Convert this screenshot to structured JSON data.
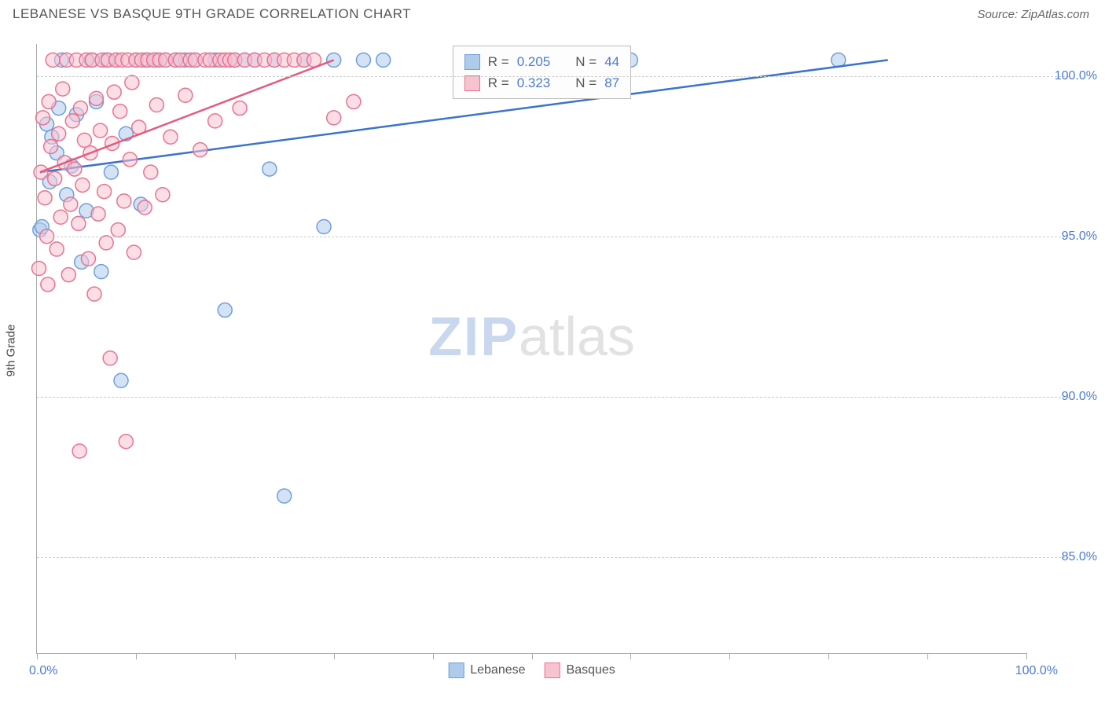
{
  "title": "LEBANESE VS BASQUE 9TH GRADE CORRELATION CHART",
  "source": "Source: ZipAtlas.com",
  "ylabel": "9th Grade",
  "watermark": {
    "part1": "ZIP",
    "part2": "atlas"
  },
  "chart": {
    "type": "scatter",
    "xlim": [
      0,
      100
    ],
    "ylim": [
      82,
      101
    ],
    "xtick_positions": [
      0,
      10,
      20,
      30,
      40,
      50,
      60,
      70,
      80,
      90,
      100
    ],
    "ytick_positions": [
      85,
      90,
      95,
      100
    ],
    "ytick_labels": [
      "85.0%",
      "90.0%",
      "95.0%",
      "100.0%"
    ],
    "x_start_label": "0.0%",
    "x_end_label": "100.0%",
    "background_color": "#ffffff",
    "grid_color": "#cccccc",
    "marker_radius": 9,
    "marker_stroke_width": 1.5,
    "series": [
      {
        "name": "Lebanese",
        "fill": "#aecbec",
        "stroke": "#6f9fd8",
        "fill_opacity": 0.55,
        "points": [
          [
            0.3,
            95.2
          ],
          [
            0.5,
            95.3
          ],
          [
            1.0,
            98.5
          ],
          [
            1.3,
            96.7
          ],
          [
            1.5,
            98.1
          ],
          [
            2.0,
            97.6
          ],
          [
            2.2,
            99.0
          ],
          [
            2.5,
            100.5
          ],
          [
            3.0,
            96.3
          ],
          [
            3.5,
            97.2
          ],
          [
            4.0,
            98.8
          ],
          [
            4.5,
            94.2
          ],
          [
            5.0,
            95.8
          ],
          [
            5.5,
            100.5
          ],
          [
            6.0,
            99.2
          ],
          [
            6.5,
            93.9
          ],
          [
            7.0,
            100.5
          ],
          [
            7.5,
            97.0
          ],
          [
            8.0,
            100.5
          ],
          [
            8.5,
            90.5
          ],
          [
            9.0,
            98.2
          ],
          [
            10.0,
            100.5
          ],
          [
            10.5,
            96.0
          ],
          [
            11.0,
            100.5
          ],
          [
            12.0,
            100.5
          ],
          [
            13.0,
            100.5
          ],
          [
            14.0,
            100.5
          ],
          [
            15.0,
            100.5
          ],
          [
            16.0,
            100.5
          ],
          [
            18.0,
            100.5
          ],
          [
            19.0,
            92.7
          ],
          [
            20.0,
            100.5
          ],
          [
            21.0,
            100.5
          ],
          [
            22.0,
            100.5
          ],
          [
            23.5,
            97.1
          ],
          [
            24.0,
            100.5
          ],
          [
            25.0,
            86.9
          ],
          [
            27.0,
            100.5
          ],
          [
            29.0,
            95.3
          ],
          [
            30.0,
            100.5
          ],
          [
            33.0,
            100.5
          ],
          [
            35.0,
            100.5
          ],
          [
            60.0,
            100.5
          ],
          [
            81.0,
            100.5
          ]
        ],
        "trend": {
          "x1": 0.3,
          "y1": 97.0,
          "x2": 86.0,
          "y2": 100.5,
          "color": "#3b74c9",
          "width": 2.5
        }
      },
      {
        "name": "Basques",
        "fill": "#f7c3d1",
        "stroke": "#e9738f",
        "fill_opacity": 0.55,
        "points": [
          [
            0.2,
            94.0
          ],
          [
            0.4,
            97.0
          ],
          [
            0.6,
            98.7
          ],
          [
            0.8,
            96.2
          ],
          [
            1.0,
            95.0
          ],
          [
            1.2,
            99.2
          ],
          [
            1.4,
            97.8
          ],
          [
            1.6,
            100.5
          ],
          [
            1.8,
            96.8
          ],
          [
            2.0,
            94.6
          ],
          [
            2.2,
            98.2
          ],
          [
            2.4,
            95.6
          ],
          [
            2.6,
            99.6
          ],
          [
            2.8,
            97.3
          ],
          [
            3.0,
            100.5
          ],
          [
            3.2,
            93.8
          ],
          [
            3.4,
            96.0
          ],
          [
            3.6,
            98.6
          ],
          [
            3.8,
            97.1
          ],
          [
            4.0,
            100.5
          ],
          [
            4.2,
            95.4
          ],
          [
            4.4,
            99.0
          ],
          [
            4.6,
            96.6
          ],
          [
            4.8,
            98.0
          ],
          [
            5.0,
            100.5
          ],
          [
            5.2,
            94.3
          ],
          [
            5.4,
            97.6
          ],
          [
            5.6,
            100.5
          ],
          [
            5.8,
            93.2
          ],
          [
            6.0,
            99.3
          ],
          [
            6.2,
            95.7
          ],
          [
            6.4,
            98.3
          ],
          [
            6.6,
            100.5
          ],
          [
            6.8,
            96.4
          ],
          [
            7.0,
            94.8
          ],
          [
            7.2,
            100.5
          ],
          [
            7.4,
            91.2
          ],
          [
            7.6,
            97.9
          ],
          [
            7.8,
            99.5
          ],
          [
            8.0,
            100.5
          ],
          [
            8.2,
            95.2
          ],
          [
            8.4,
            98.9
          ],
          [
            8.6,
            100.5
          ],
          [
            8.8,
            96.1
          ],
          [
            9.0,
            88.6
          ],
          [
            9.2,
            100.5
          ],
          [
            9.4,
            97.4
          ],
          [
            9.6,
            99.8
          ],
          [
            9.8,
            94.5
          ],
          [
            10.0,
            100.5
          ],
          [
            10.3,
            98.4
          ],
          [
            10.6,
            100.5
          ],
          [
            10.9,
            95.9
          ],
          [
            11.2,
            100.5
          ],
          [
            11.5,
            97.0
          ],
          [
            11.8,
            100.5
          ],
          [
            12.1,
            99.1
          ],
          [
            12.4,
            100.5
          ],
          [
            12.7,
            96.3
          ],
          [
            13.0,
            100.5
          ],
          [
            13.5,
            98.1
          ],
          [
            14.0,
            100.5
          ],
          [
            14.5,
            100.5
          ],
          [
            15.0,
            99.4
          ],
          [
            15.5,
            100.5
          ],
          [
            16.0,
            100.5
          ],
          [
            16.5,
            97.7
          ],
          [
            17.0,
            100.5
          ],
          [
            17.5,
            100.5
          ],
          [
            18.0,
            98.6
          ],
          [
            18.5,
            100.5
          ],
          [
            19.0,
            100.5
          ],
          [
            19.5,
            100.5
          ],
          [
            20.0,
            100.5
          ],
          [
            20.5,
            99.0
          ],
          [
            21.0,
            100.5
          ],
          [
            22.0,
            100.5
          ],
          [
            23.0,
            100.5
          ],
          [
            24.0,
            100.5
          ],
          [
            25.0,
            100.5
          ],
          [
            26.0,
            100.5
          ],
          [
            27.0,
            100.5
          ],
          [
            28.0,
            100.5
          ],
          [
            30.0,
            98.7
          ],
          [
            32.0,
            99.2
          ],
          [
            4.3,
            88.3
          ],
          [
            1.1,
            93.5
          ]
        ],
        "trend": {
          "x1": 0.3,
          "y1": 97.0,
          "x2": 30.0,
          "y2": 100.5,
          "color": "#e55a7c",
          "width": 2.5
        }
      }
    ]
  },
  "stats_legend": {
    "rows": [
      {
        "swatch_fill": "#aecbec",
        "swatch_stroke": "#6f9fd8",
        "r_label": "R =",
        "r_val": "0.205",
        "n_label": "N =",
        "n_val": "44"
      },
      {
        "swatch_fill": "#f7c3d1",
        "swatch_stroke": "#e9738f",
        "r_label": "R =",
        "r_val": "0.323",
        "n_label": "N =",
        "n_val": "87"
      }
    ]
  },
  "bottom_legend": [
    {
      "swatch_fill": "#aecbec",
      "swatch_stroke": "#6f9fd8",
      "label": "Lebanese"
    },
    {
      "swatch_fill": "#f7c3d1",
      "swatch_stroke": "#e9738f",
      "label": "Basques"
    }
  ]
}
